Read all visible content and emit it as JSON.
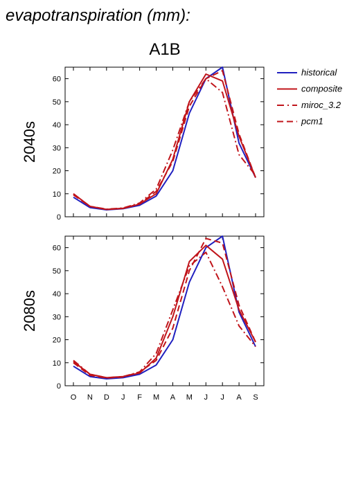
{
  "header": {
    "title": "evapotranspiration (mm):",
    "scenario": "A1B"
  },
  "colors": {
    "historical": "#1f1fbf",
    "projection": "#c0141a",
    "axes": "#000000"
  },
  "legend": {
    "placement": "right",
    "entries": [
      {
        "name": "historical",
        "style": "solid",
        "color": "#1f1fbf"
      },
      {
        "name": "composite",
        "style": "solid",
        "color": "#c0141a"
      },
      {
        "name": "miroc_3.2",
        "style": "dashdot",
        "color": "#c0141a"
      },
      {
        "name": "pcm1",
        "style": "dashed",
        "color": "#c0141a"
      }
    ]
  },
  "chart_data": [
    {
      "type": "line",
      "title": "2040s",
      "xlabel": "",
      "ylabel": "2040s",
      "categories": [
        "O",
        "N",
        "D",
        "J",
        "F",
        "M",
        "A",
        "M",
        "J",
        "J",
        "A",
        "S"
      ],
      "yticks": [
        0,
        10,
        20,
        30,
        40,
        50,
        60
      ],
      "ylim": [
        0,
        65
      ],
      "grid": false,
      "series": [
        {
          "name": "historical",
          "style": "solid",
          "values": [
            8.5,
            4,
            3,
            3.5,
            5,
            9,
            20,
            45,
            60,
            65,
            32,
            17
          ]
        },
        {
          "name": "composite",
          "style": "solid",
          "values": [
            10,
            4.5,
            3.2,
            3.6,
            5.5,
            10,
            25,
            50,
            62,
            59,
            35,
            17
          ]
        },
        {
          "name": "miroc_3.2",
          "style": "dashdot",
          "values": [
            10,
            4.5,
            3.3,
            3.8,
            6,
            12,
            29,
            50,
            60,
            54,
            27,
            18
          ]
        },
        {
          "name": "pcm1",
          "style": "dashed",
          "values": [
            9.5,
            4.5,
            3.2,
            3.7,
            5.6,
            11,
            24,
            48,
            60,
            63.5,
            36,
            17
          ]
        }
      ]
    },
    {
      "type": "line",
      "title": "2080s",
      "xlabel": "",
      "ylabel": "2080s",
      "categories": [
        "O",
        "N",
        "D",
        "J",
        "F",
        "M",
        "A",
        "M",
        "J",
        "J",
        "A",
        "S"
      ],
      "yticks": [
        0,
        10,
        20,
        30,
        40,
        50,
        60
      ],
      "ylim": [
        0,
        65
      ],
      "grid": false,
      "series": [
        {
          "name": "historical",
          "style": "solid",
          "values": [
            8.5,
            4,
            3,
            3.5,
            5,
            9,
            20,
            45,
            60,
            65,
            32,
            17
          ]
        },
        {
          "name": "composite",
          "style": "solid",
          "values": [
            10.5,
            5,
            3.5,
            4,
            5.5,
            12,
            30,
            54,
            61,
            55,
            33,
            19
          ]
        },
        {
          "name": "miroc_3.2",
          "style": "dashdot",
          "values": [
            11,
            5,
            3.5,
            4,
            6,
            14,
            33,
            52,
            58,
            43,
            26,
            17
          ]
        },
        {
          "name": "pcm1",
          "style": "dashed",
          "values": [
            10,
            4.5,
            3.4,
            3.8,
            6,
            11,
            25,
            50,
            64,
            62,
            35,
            19
          ]
        }
      ]
    }
  ]
}
